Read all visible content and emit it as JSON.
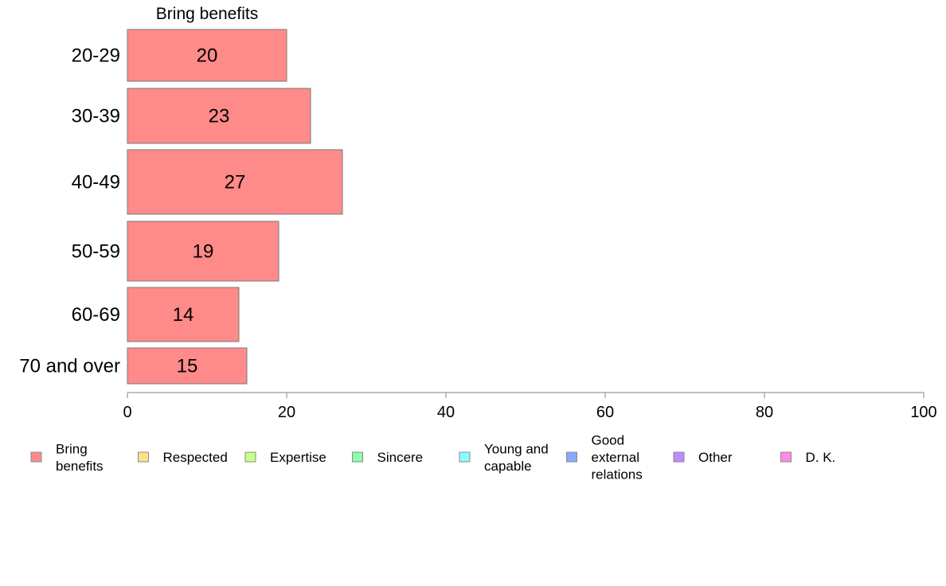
{
  "chart_data": {
    "type": "bar",
    "orientation": "horizontal",
    "stacked": true,
    "series_title": "Bring benefits",
    "categories": [
      "20-29",
      "30-39",
      "40-49",
      "50-59",
      "60-69",
      "70 and over"
    ],
    "series": [
      {
        "name": "Bring benefits",
        "color": "#ff8a8a",
        "values": [
          20,
          23,
          27,
          19,
          14,
          15
        ]
      }
    ],
    "xlim": [
      0,
      100
    ],
    "xticks": [
      "0",
      "20",
      "40",
      "60",
      "80",
      "100"
    ],
    "grid": false,
    "legend_position": "bottom",
    "legend": [
      {
        "lines": [
          "Bring",
          "benefits"
        ],
        "color": "#ff8a8a"
      },
      {
        "lines": [
          "Respected"
        ],
        "color": "#ffe08a"
      },
      {
        "lines": [
          "Expertise"
        ],
        "color": "#c8ff8a"
      },
      {
        "lines": [
          "Sincere"
        ],
        "color": "#8affaa"
      },
      {
        "lines": [
          "Young and",
          "capable"
        ],
        "color": "#8affff"
      },
      {
        "lines": [
          "Good",
          "external",
          "relations"
        ],
        "color": "#8aa8ff"
      },
      {
        "lines": [
          "Other"
        ],
        "color": "#c08aff"
      },
      {
        "lines": [
          "D. K."
        ],
        "color": "#ff8ae8"
      }
    ]
  }
}
